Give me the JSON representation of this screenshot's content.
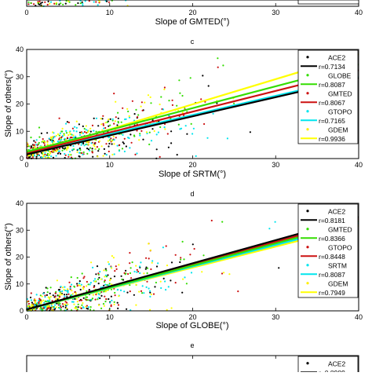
{
  "chart_data": [
    {
      "type": "scatter",
      "title": "",
      "xlabel": "Slope of GMTED(°)",
      "ylabel": "",
      "xlim": [
        0,
        40
      ],
      "x_ticks": [
        "0",
        "10",
        "20",
        "30",
        "40"
      ],
      "partial": "bottom strip only (top of panel cut off)",
      "series": []
    },
    {
      "type": "scatter",
      "title": "c",
      "xlabel": "Slope of SRTM(°)",
      "ylabel": "Slope of others(°)",
      "xlim": [
        0,
        40
      ],
      "ylim": [
        0,
        40
      ],
      "x_ticks": [
        "0",
        "10",
        "20",
        "30",
        "40"
      ],
      "y_ticks": [
        "0",
        "10",
        "20",
        "30",
        "40"
      ],
      "legend": "top-right",
      "series": [
        {
          "name": "ACE2",
          "r_label": "r=0.7134",
          "color": "#000000",
          "fit": [
            1.5,
            0.7
          ]
        },
        {
          "name": "GLOBE",
          "r_label": "r=0.8087",
          "color": "#33dd00",
          "fit": [
            2.5,
            0.8
          ]
        },
        {
          "name": "GMTED",
          "r_label": "r=0.8067",
          "color": "#cc1111",
          "fit": [
            2.0,
            0.76
          ]
        },
        {
          "name": "GTOPO",
          "r_label": "r=0.7165",
          "color": "#00e5ee",
          "fit": [
            2.0,
            0.7
          ]
        },
        {
          "name": "GDEM",
          "r_label": "r=0.9936",
          "color": "#ffff00",
          "fit": [
            1.5,
            0.92
          ]
        }
      ]
    },
    {
      "type": "scatter",
      "title": "d",
      "xlabel": "Slope of GLOBE(°)",
      "ylabel": "Slope of others(°)",
      "xlim": [
        0,
        40
      ],
      "ylim": [
        0,
        40
      ],
      "x_ticks": [
        "0",
        "10",
        "20",
        "30",
        "40"
      ],
      "y_ticks": [
        "0",
        "10",
        "20",
        "30",
        "40"
      ],
      "legend": "top-right",
      "series": [
        {
          "name": "ACE2",
          "r_label": "r=0.8181",
          "color": "#000000",
          "fit": [
            0.5,
            0.86
          ]
        },
        {
          "name": "GMTED",
          "r_label": "r=0.8366",
          "color": "#33dd00",
          "fit": [
            0.5,
            0.82
          ]
        },
        {
          "name": "GTOPO",
          "r_label": "r=0.8448",
          "color": "#cc1111",
          "fit": [
            0.5,
            0.84
          ]
        },
        {
          "name": "SRTM",
          "r_label": "r=0.8087",
          "color": "#00e5ee",
          "fit": [
            0.5,
            0.8
          ]
        },
        {
          "name": "GDEM",
          "r_label": "r=0.7949",
          "color": "#ffff00",
          "fit": [
            0.5,
            0.78
          ]
        }
      ]
    },
    {
      "type": "scatter",
      "title": "e",
      "partial": "top strip only (rest of panel cut off)",
      "legend": "top-right",
      "series": [
        {
          "name": "ACE2",
          "r_label": "r=0.8989",
          "color": "#000000"
        }
      ]
    }
  ]
}
